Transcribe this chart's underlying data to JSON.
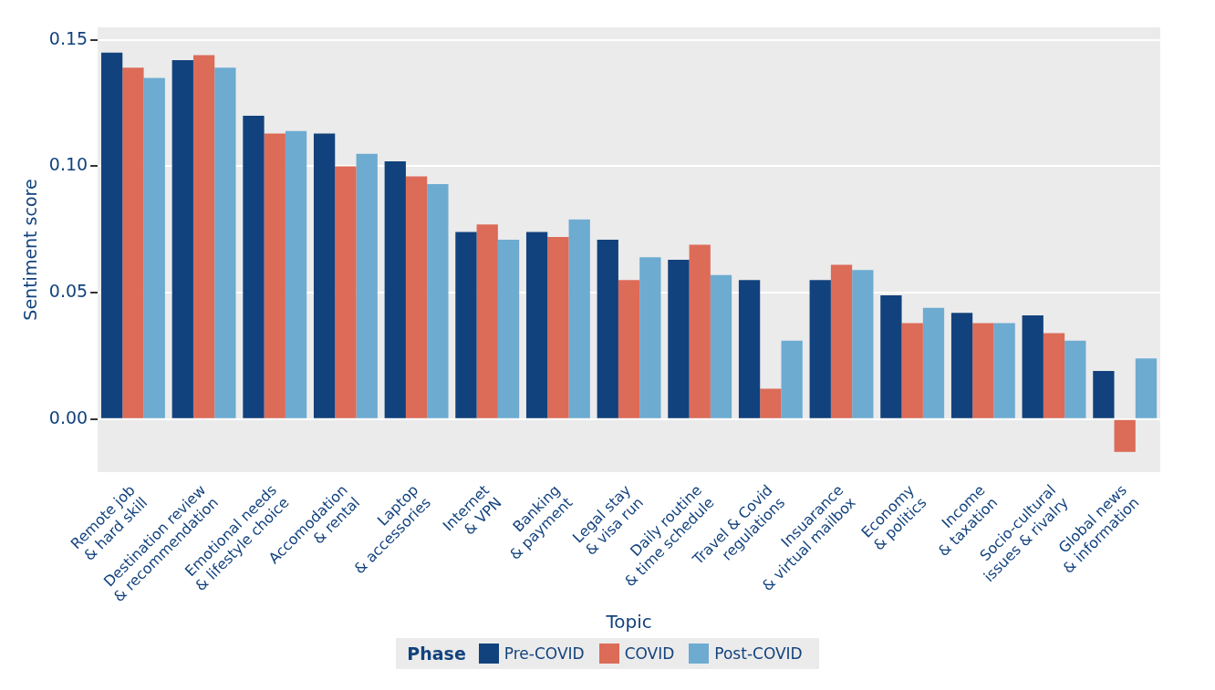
{
  "chart_data": {
    "type": "bar",
    "categories": [
      "Remote job\n& hard skill",
      "Destination review\n& recommendation",
      "Emotional needs\n& lifestyle choice",
      "Accomodation\n& rental",
      "Laptop\n& accessories",
      "Internet\n& VPN",
      "Banking\n& payment",
      "Legal stay\n& visa run",
      "Daily routine\n& time schedule",
      "Travel & Covid\nregulations",
      "Insuarance\n& virtual mailbox",
      "Economy\n& politics",
      "Income\n& taxation",
      "Socio-cultural\nissues & rivalry",
      "Global news\n& information"
    ],
    "series": [
      {
        "name": "Pre-COVID",
        "color": "#12427d",
        "values": [
          0.145,
          0.142,
          0.12,
          0.113,
          0.102,
          0.074,
          0.074,
          0.071,
          0.063,
          0.055,
          0.055,
          0.049,
          0.042,
          0.041,
          0.019
        ]
      },
      {
        "name": "COVID",
        "color": "#dc6b58",
        "values": [
          0.139,
          0.144,
          0.113,
          0.1,
          0.096,
          0.077,
          0.072,
          0.055,
          0.069,
          0.012,
          0.061,
          0.038,
          0.038,
          0.034,
          -0.013
        ]
      },
      {
        "name": "Post-COVID",
        "color": "#6dabd1",
        "values": [
          0.135,
          0.139,
          0.114,
          0.105,
          0.093,
          0.071,
          0.079,
          0.064,
          0.057,
          0.031,
          0.059,
          0.044,
          0.038,
          0.031,
          0.024
        ]
      }
    ],
    "xlabel": "Topic",
    "ylabel": "Sentiment score",
    "legend_title": "Phase",
    "ylim": [
      -0.021,
      0.155
    ],
    "yticks": [
      {
        "value": 0,
        "label": "0.00"
      },
      {
        "value": 0.05,
        "label": "0.05"
      },
      {
        "value": 0.1,
        "label": "0.10"
      },
      {
        "value": 0.15,
        "label": "0.15"
      }
    ],
    "grid": "y",
    "legend": "bottom"
  }
}
